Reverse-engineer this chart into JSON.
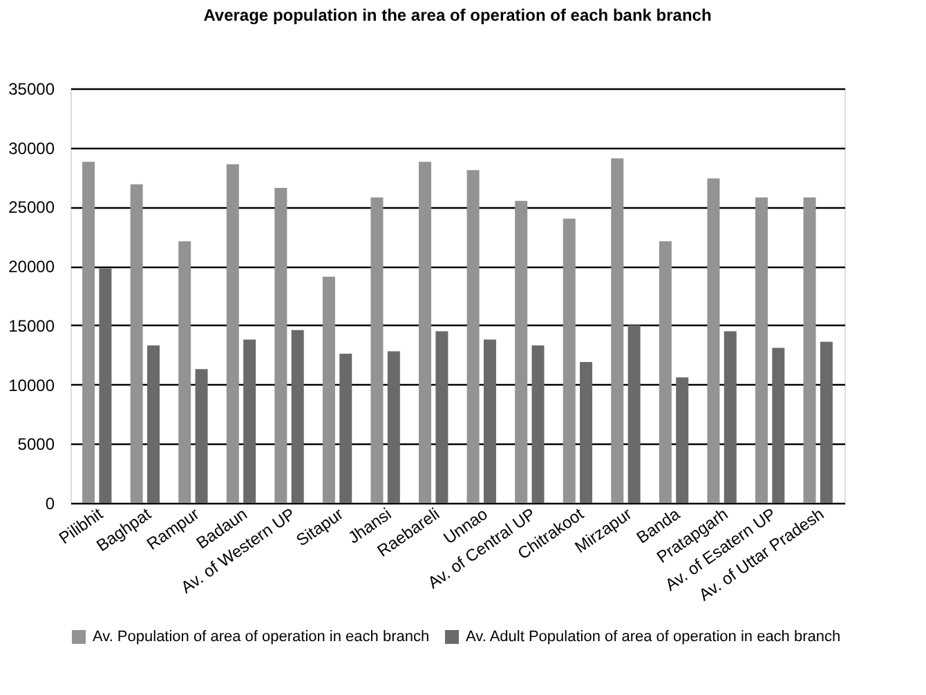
{
  "chart_data": {
    "type": "bar",
    "title": "Average population in the area of operation of each bank branch",
    "categories": [
      "Pilibhit",
      "Baghpat",
      "Rampur",
      "Badaun",
      "Av. of Western UP",
      "Sitapur",
      "Jhansi",
      "Raebareli",
      "Unnao",
      "Av. of Central UP",
      "Chitrakoot",
      "Mirzapur",
      "Banda",
      "Pratapgarh",
      "Av. of Esatern UP",
      "Av. of Uttar Pradesh"
    ],
    "series": [
      {
        "name": "Av. Population of area of operation in each branch",
        "color": "#939393",
        "values": [
          28800,
          26900,
          22100,
          28600,
          26600,
          19100,
          25800,
          28800,
          28100,
          25500,
          24000,
          29100,
          22100,
          27400,
          25800,
          25800
        ]
      },
      {
        "name": "Av. Adult Population of area of operation in each branch",
        "color": "#6a6a6d",
        "values": [
          19800,
          13300,
          11300,
          13800,
          14600,
          12600,
          12800,
          14500,
          13800,
          13300,
          11900,
          15000,
          10600,
          14500,
          13100,
          13600
        ]
      }
    ],
    "ylim": [
      0,
      35000
    ],
    "yticks": [
      0,
      5000,
      10000,
      15000,
      20000,
      25000,
      30000,
      35000
    ],
    "grid": "y",
    "legend": "bottom"
  }
}
